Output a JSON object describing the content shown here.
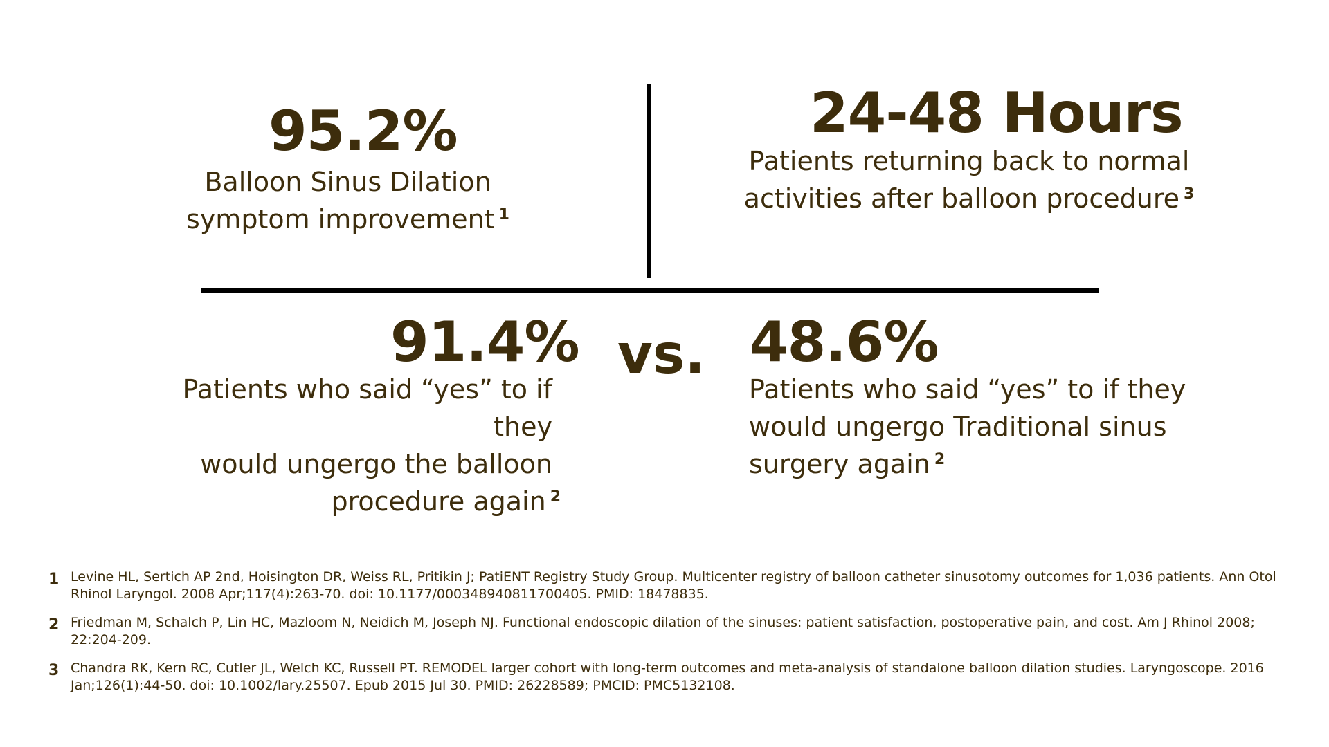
{
  "stats": {
    "top_left": {
      "value": "95.2%",
      "line1": "Balloon Sinus Dilation",
      "line2": "symptom improvement",
      "sup": "1"
    },
    "top_right": {
      "value": "24-48 Hours",
      "line1": "Patients returning back to normal",
      "line2": "activities after balloon procedure",
      "sup": "3"
    },
    "bottom_left": {
      "value": "91.4%",
      "line1": "Patients who said “yes” to if they",
      "line2": "would ungergo the balloon",
      "line3": "procedure again",
      "sup": "2"
    },
    "bottom_right": {
      "value": "48.6%",
      "line1": "Patients who said “yes” to if they",
      "line2": "would ungergo Traditional sinus",
      "line3": "surgery again",
      "sup": "2"
    },
    "vs_label": "vs."
  },
  "references": [
    {
      "num": "1",
      "text": "Levine HL, Sertich AP 2nd, Hoisington DR, Weiss RL, Pritikin J; PatiENT Registry Study Group. Multicenter registry of balloon catheter sinusotomy outcomes for 1,036 patients. Ann Otol Rhinol Laryngol. 2008 Apr;117(4):263-70. doi: 10.1177/000348940811700405. PMID: 18478835."
    },
    {
      "num": "2",
      "text": "Friedman M, Schalch P, Lin HC, Mazloom N, Neidich M, Joseph NJ. Functional endoscopic dilation of the sinuses: patient satisfaction, postoperative pain, and cost. Am J Rhinol 2008; 22:204-209."
    },
    {
      "num": "3",
      "text": "Chandra RK, Kern RC, Cutler JL, Welch KC, Russell PT. REMODEL larger cohort with long-term outcomes and meta-analysis of standalone balloon dilation studies. Laryngoscope. 2016 Jan;126(1):44-50. doi: 10.1002/lary.25507. Epub 2015 Jul 30. PMID: 26228589; PMCID: PMC5132108."
    }
  ],
  "colors": {
    "text": "#3d2d0c",
    "divider": "#000000",
    "background": "#ffffff"
  }
}
